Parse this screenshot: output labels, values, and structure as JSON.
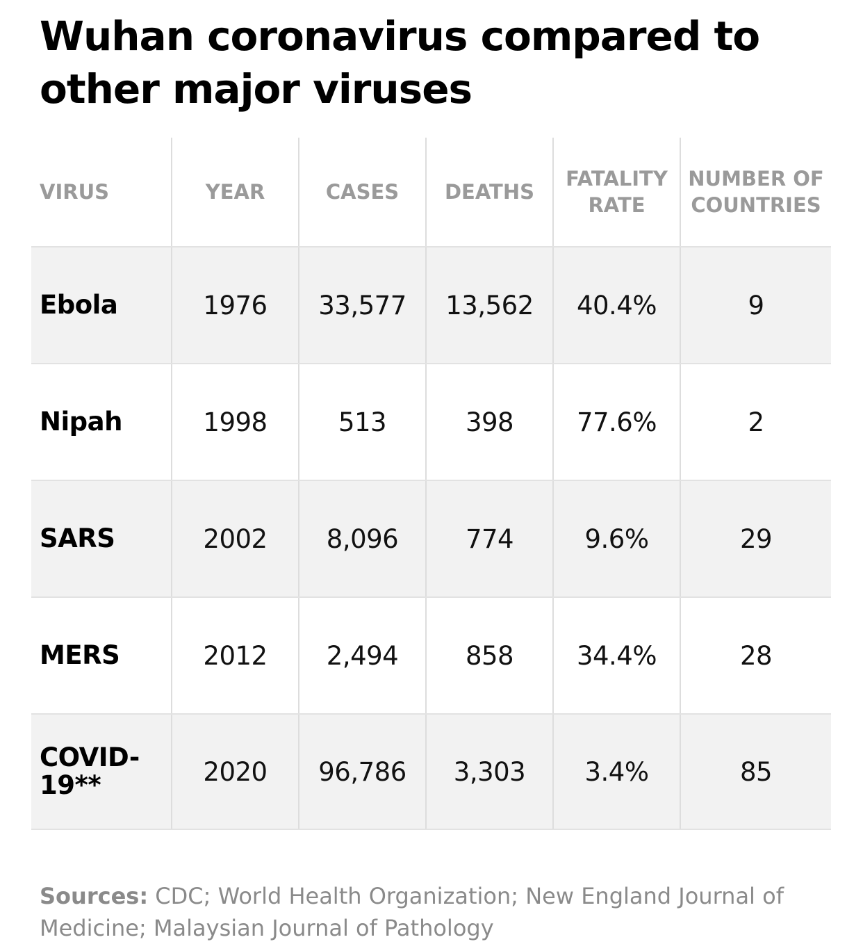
{
  "chart_data": {
    "type": "table",
    "title": "Wuhan coronavirus compared to other major viruses",
    "columns": [
      "VIRUS",
      "YEAR",
      "CASES",
      "DEATHS",
      "FATALITY RATE",
      "NUMBER OF COUNTRIES"
    ],
    "rows": [
      {
        "virus": "Ebola",
        "year": "1976",
        "cases": "33,577",
        "deaths": "13,562",
        "fatality_rate": "40.4%",
        "countries": "9"
      },
      {
        "virus": "Nipah",
        "year": "1998",
        "cases": "513",
        "deaths": "398",
        "fatality_rate": "77.6%",
        "countries": "2"
      },
      {
        "virus": "SARS",
        "year": "2002",
        "cases": "8,096",
        "deaths": "774",
        "fatality_rate": "9.6%",
        "countries": "29"
      },
      {
        "virus": "MERS",
        "year": "2012",
        "cases": "2,494",
        "deaths": "858",
        "fatality_rate": "34.4%",
        "countries": "28"
      },
      {
        "virus": "COVID-19**",
        "year": "2020",
        "cases": "96,786",
        "deaths": "3,303",
        "fatality_rate": "3.4%",
        "countries": "85"
      }
    ],
    "sources_label": "Sources:",
    "sources_text": "CDC; World Health Organization; New England Journal of Medicine; Malaysian Journal of Pathology"
  },
  "colors": {
    "row_shaded": "#f2f2f2",
    "row_plain": "#ffffff",
    "header_text": "#9a9a9a",
    "sources_text": "#8a8a8a",
    "grid_line": "#dddddd"
  }
}
